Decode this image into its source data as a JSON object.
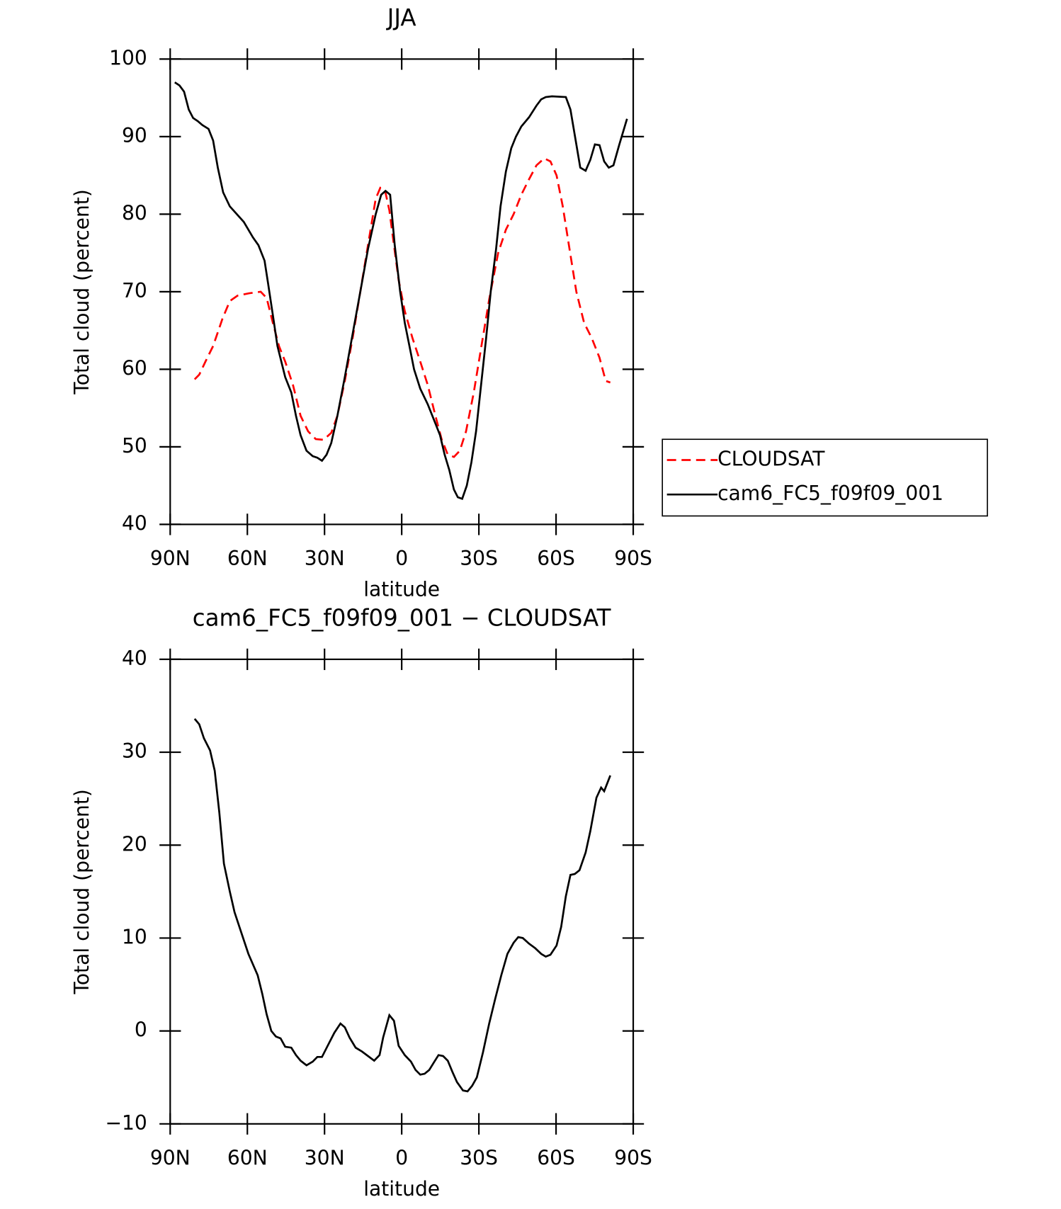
{
  "chart_data": [
    {
      "type": "line",
      "title": "JJA",
      "xlabel": "latitude",
      "ylabel": "Total cloud (percent)",
      "xlim": [
        90,
        -90
      ],
      "xticks": [
        {
          "value": 90,
          "label": "90N"
        },
        {
          "value": 60,
          "label": "60N"
        },
        {
          "value": 30,
          "label": "30N"
        },
        0,
        {
          "value": -30,
          "label": "30S"
        },
        {
          "value": -60,
          "label": "60S"
        },
        {
          "value": -90,
          "label": "90S"
        }
      ],
      "ylim": [
        40,
        100
      ],
      "yticks": [
        40,
        50,
        60,
        70,
        80,
        90,
        100
      ],
      "legend": "outside-right",
      "series": [
        {
          "name": "CLOUDSAT",
          "color": "#ff0000",
          "dash": true,
          "x": [
            80.5,
            78.7,
            76.3,
            73.3,
            69.7,
            66.8,
            63.8,
            59.3,
            54.8,
            52.5,
            50.1,
            47.7,
            45.3,
            42.3,
            39.3,
            36.4,
            33.4,
            30.4,
            27.4,
            25.0,
            22.1,
            19.1,
            16.1,
            13.1,
            10.1,
            8.3,
            6.6,
            4.8,
            3.0,
            1.2,
            -1.2,
            -4.2,
            -7.2,
            -10.1,
            -13.1,
            -15.5,
            -17.9,
            -20.3,
            -22.6,
            -25.0,
            -28.0,
            -31.0,
            -34.0,
            -37.5,
            -40.5,
            -43.5,
            -46.5,
            -49.5,
            -52.4,
            -55.4,
            -57.8,
            -60.2,
            -62.6,
            -65.0,
            -67.9,
            -70.9,
            -73.9,
            -76.9,
            -79.3,
            -81.1
          ],
          "values": [
            58.7,
            59.3,
            61,
            63,
            66.5,
            68.8,
            69.5,
            69.8,
            70,
            69.2,
            66,
            63,
            61,
            58,
            54,
            52,
            51,
            50.9,
            51.8,
            54,
            58.5,
            64,
            70,
            76,
            82,
            83.4,
            83.2,
            80.5,
            76,
            71.5,
            67.5,
            64,
            61,
            58,
            54,
            51,
            49,
            48.7,
            49.5,
            52,
            57,
            63,
            69,
            75,
            78,
            80,
            82.5,
            84.5,
            86.3,
            87.2,
            86.8,
            85,
            81,
            76,
            70,
            66,
            64,
            61.5,
            58.5,
            58.3
          ]
        },
        {
          "name": "cam6_FC5_f09f09_001",
          "color": "#000000",
          "dash": false,
          "x": [
            88.2,
            86.4,
            84.6,
            82.8,
            81.1,
            79.3,
            77.5,
            75.1,
            73.3,
            71.5,
            69.4,
            66.8,
            61.4,
            57.8,
            55.7,
            53.3,
            51.9,
            50.1,
            48.3,
            45.3,
            42.9,
            41.1,
            39.3,
            37.0,
            34.6,
            32.8,
            31.0,
            29.2,
            27.4,
            25.0,
            22.1,
            19.1,
            16.1,
            13.1,
            10.1,
            8.0,
            6.3,
            4.5,
            2.7,
            0.6,
            -1.2,
            -3.3,
            -4.8,
            -7.2,
            -10.1,
            -13.1,
            -14.9,
            -16.7,
            -18.5,
            -20.3,
            -21.8,
            -23.5,
            -25.3,
            -27.1,
            -28.9,
            -30.7,
            -32.8,
            -34.6,
            -36.7,
            -38.4,
            -40.5,
            -42.6,
            -44.4,
            -46.5,
            -49.5,
            -52.4,
            -54.2,
            -56.0,
            -58.4,
            -63.8,
            -65.6,
            -67.9,
            -69.4,
            -71.5,
            -73.3,
            -75.1,
            -76.9,
            -78.7,
            -80.5,
            -82.3,
            -84.6,
            -87.6
          ],
          "values": [
            97,
            96.6,
            95.8,
            93.5,
            92.4,
            92,
            91.5,
            91,
            89.5,
            86,
            82.8,
            81,
            79,
            77,
            76,
            74,
            71,
            67,
            63,
            59,
            57,
            54,
            51.5,
            49.5,
            48.8,
            48.6,
            48.2,
            49,
            50.5,
            54,
            59,
            64.5,
            70,
            75.5,
            80,
            82.5,
            83,
            82.5,
            76,
            70,
            66,
            62.5,
            60,
            57.5,
            55.5,
            53,
            51.5,
            49,
            47,
            44.5,
            43.5,
            43.3,
            45,
            48,
            52,
            57.5,
            64,
            70,
            75.5,
            81,
            85.5,
            88.5,
            90,
            91.3,
            92.5,
            94,
            94.8,
            95.1,
            95.2,
            95.1,
            93.5,
            89,
            86,
            85.6,
            87,
            89,
            88.9,
            86.8,
            86,
            86.3,
            89,
            92.3
          ]
        }
      ]
    },
    {
      "type": "line",
      "title": "cam6_FC5_f09f09_001 − CLOUDSAT",
      "xlabel": "latitude",
      "ylabel": "Total cloud (percent)",
      "xlim": [
        90,
        -90
      ],
      "xticks": [
        {
          "value": 90,
          "label": "90N"
        },
        {
          "value": 60,
          "label": "60N"
        },
        {
          "value": 30,
          "label": "30N"
        },
        0,
        {
          "value": -30,
          "label": "30S"
        },
        {
          "value": -60,
          "label": "60S"
        },
        {
          "value": -90,
          "label": "90S"
        }
      ],
      "ylim": [
        -10,
        40
      ],
      "yticks": [
        {
          "value": -10,
          "label": "−10"
        },
        0,
        10,
        20,
        30,
        40
      ],
      "series": [
        {
          "color": "#000000",
          "dash": false,
          "x": [
            80.5,
            78.7,
            76.9,
            74.5,
            72.7,
            70.9,
            69.1,
            66.8,
            65.0,
            62.6,
            59.6,
            56.0,
            54.2,
            52.5,
            50.7,
            48.9,
            47.1,
            45.3,
            42.9,
            41.1,
            39.3,
            37.0,
            34.6,
            32.8,
            31.0,
            28.6,
            26.2,
            23.8,
            22.1,
            20.3,
            17.9,
            15.5,
            13.1,
            10.7,
            8.6,
            7.2,
            4.8,
            3.0,
            1.2,
            -1.2,
            -3.6,
            -5.4,
            -7.2,
            -8.9,
            -10.7,
            -12.5,
            -14.3,
            -16.1,
            -17.9,
            -19.7,
            -21.5,
            -23.8,
            -25.6,
            -27.4,
            -29.2,
            -31.6,
            -34.0,
            -36.4,
            -38.7,
            -41.1,
            -43.5,
            -45.3,
            -47.1,
            -49.5,
            -51.9,
            -54.2,
            -56.0,
            -57.8,
            -60.2,
            -62.0,
            -63.8,
            -65.6,
            -67.3,
            -69.1,
            -71.5,
            -73.3,
            -75.7,
            -77.5,
            -78.7,
            -81.1
          ],
          "values": [
            33.6,
            33,
            31.5,
            30.2,
            28,
            23.5,
            18,
            15,
            12.8,
            10.8,
            8.3,
            6,
            4,
            1.8,
            0,
            -0.6,
            -0.8,
            -1.7,
            -1.8,
            -2.6,
            -3.2,
            -3.7,
            -3.3,
            -2.8,
            -2.8,
            -1.5,
            -0.2,
            0.8,
            0.4,
            -0.7,
            -1.8,
            -2.2,
            -2.7,
            -3.2,
            -2.6,
            -0.7,
            1.7,
            1.1,
            -1.6,
            -2.6,
            -3.3,
            -4.2,
            -4.7,
            -4.6,
            -4.2,
            -3.4,
            -2.6,
            -2.7,
            -3.2,
            -4.4,
            -5.5,
            -6.4,
            -6.5,
            -5.9,
            -5,
            -2.3,
            0.8,
            3.5,
            6,
            8.3,
            9.5,
            10.1,
            10,
            9.4,
            8.9,
            8.3,
            8,
            8.2,
            9.2,
            11.2,
            14.5,
            16.8,
            16.9,
            17.3,
            19.2,
            21.5,
            25.1,
            26.2,
            25.8,
            27.5
          ]
        }
      ]
    }
  ]
}
